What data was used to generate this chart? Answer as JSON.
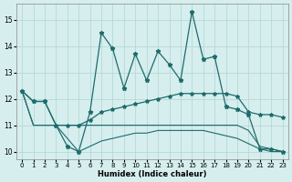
{
  "title": "",
  "xlabel": "Humidex (Indice chaleur)",
  "ylabel": "",
  "xlim": [
    -0.5,
    23.5
  ],
  "ylim": [
    9.7,
    15.6
  ],
  "bg_color": "#d6eeee",
  "grid_color": "#b8d8d8",
  "line_color": "#1e6b6b",
  "xticks": [
    0,
    1,
    2,
    3,
    4,
    5,
    6,
    7,
    8,
    9,
    10,
    11,
    12,
    13,
    14,
    15,
    16,
    17,
    18,
    19,
    20,
    21,
    22,
    23
  ],
  "yticks": [
    10,
    11,
    12,
    13,
    14,
    15
  ],
  "line1_x": [
    0,
    1,
    2,
    3,
    4,
    5,
    6,
    7,
    8,
    9,
    10,
    11,
    12,
    13,
    14,
    15,
    16,
    17,
    18,
    19,
    20,
    21,
    22,
    23
  ],
  "line1_y": [
    12.3,
    11.9,
    11.9,
    11.0,
    10.2,
    10.0,
    11.5,
    14.5,
    13.9,
    12.4,
    13.7,
    12.7,
    13.8,
    13.3,
    12.7,
    15.3,
    13.5,
    13.6,
    11.7,
    11.6,
    11.4,
    10.1,
    10.1,
    10.0
  ],
  "line2_x": [
    0,
    1,
    2,
    3,
    4,
    5,
    6,
    7,
    8,
    9,
    10,
    11,
    12,
    13,
    14,
    15,
    16,
    17,
    18,
    19,
    20,
    21,
    22,
    23
  ],
  "line2_y": [
    12.3,
    11.9,
    11.9,
    11.0,
    11.0,
    11.0,
    11.2,
    11.5,
    11.6,
    11.7,
    11.8,
    11.9,
    12.0,
    12.1,
    12.2,
    12.2,
    12.2,
    12.2,
    12.2,
    12.1,
    11.5,
    11.4,
    11.4,
    11.3
  ],
  "line3_x": [
    0,
    1,
    2,
    3,
    4,
    5,
    6,
    7,
    8,
    9,
    10,
    11,
    12,
    13,
    14,
    15,
    16,
    17,
    18,
    19,
    20,
    21,
    22,
    23
  ],
  "line3_y": [
    12.3,
    11.0,
    11.0,
    11.0,
    11.0,
    11.0,
    11.0,
    11.0,
    11.0,
    11.0,
    11.0,
    11.0,
    11.0,
    11.0,
    11.0,
    11.0,
    11.0,
    11.0,
    11.0,
    11.0,
    10.8,
    10.2,
    10.1,
    10.0
  ],
  "line4_x": [
    0,
    1,
    2,
    3,
    4,
    5,
    6,
    7,
    8,
    9,
    10,
    11,
    12,
    13,
    14,
    15,
    16,
    17,
    18,
    19,
    20,
    21,
    22,
    23
  ],
  "line4_y": [
    12.3,
    11.0,
    11.0,
    11.0,
    10.5,
    10.0,
    10.2,
    10.4,
    10.5,
    10.6,
    10.7,
    10.7,
    10.8,
    10.8,
    10.8,
    10.8,
    10.8,
    10.7,
    10.6,
    10.5,
    10.3,
    10.1,
    10.0,
    10.0
  ]
}
